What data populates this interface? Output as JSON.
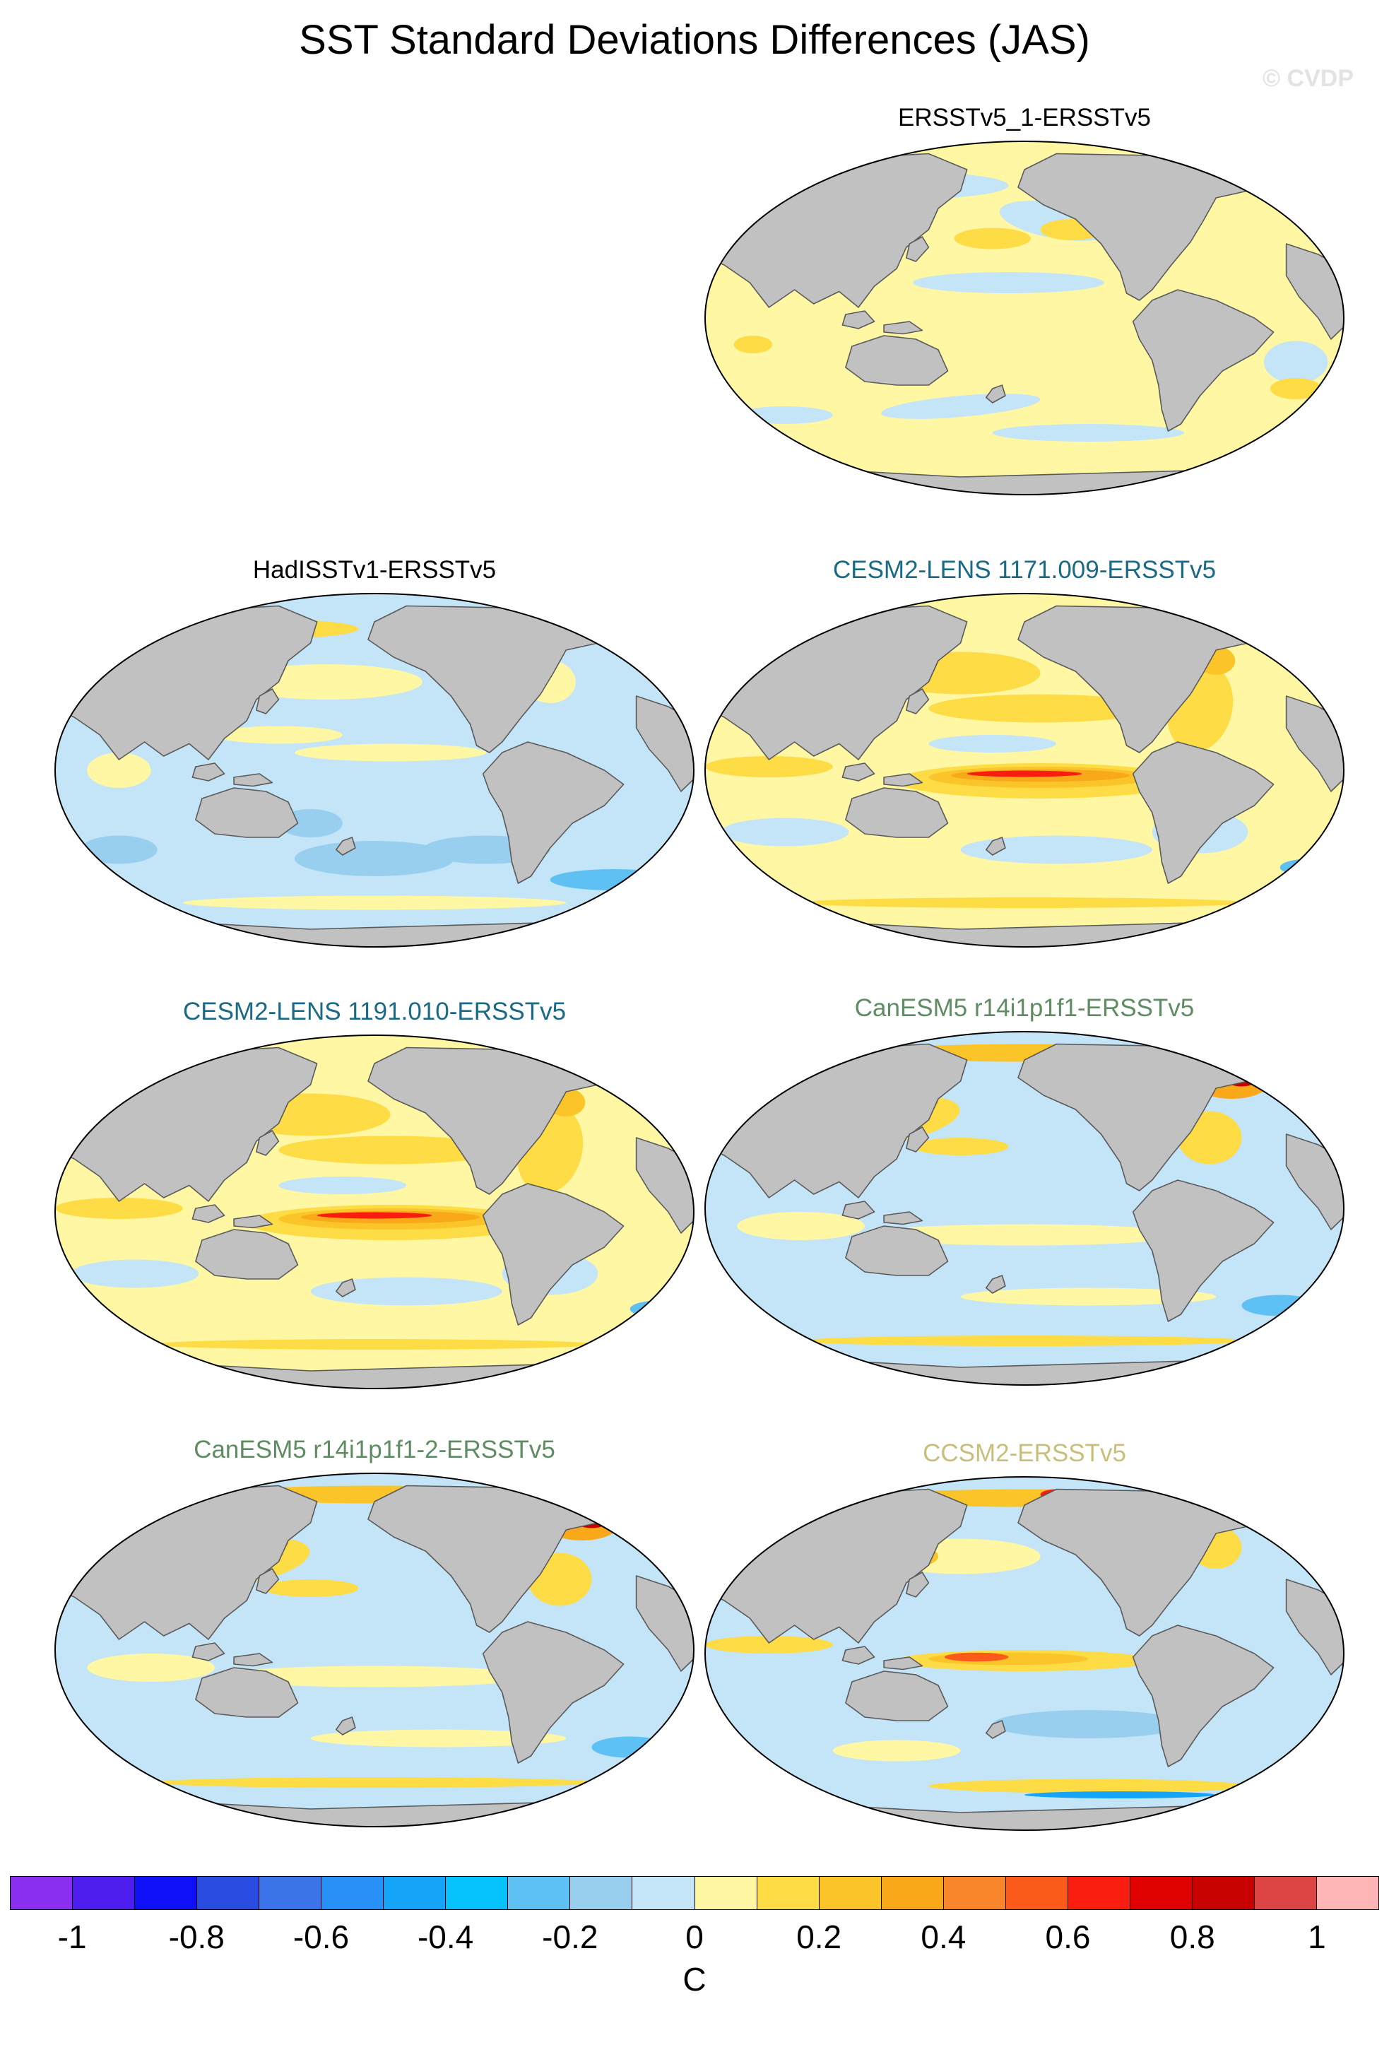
{
  "title": "SST Standard Deviations Differences (JAS)",
  "watermark": "© CVDP",
  "panels": [
    {
      "label": "ERSSTv5_1-ERSSTv5",
      "label_color": "#000000",
      "pattern": "mild"
    },
    {
      "label": "HadISSTv1-ERSSTv5",
      "label_color": "#000000",
      "pattern": "cool"
    },
    {
      "label": "CESM2-LENS 1171.009-ERSSTv5",
      "label_color": "#1a6a86",
      "pattern": "enso-strong"
    },
    {
      "label": "CESM2-LENS 1191.010-ERSSTv5",
      "label_color": "#1a6a86",
      "pattern": "enso-strong"
    },
    {
      "label": "CanESM5 r14i1p1f1-ERSSTv5",
      "label_color": "#5f8c63",
      "pattern": "arctic-warm"
    },
    {
      "label": "CanESM5 r14i1p1f1-2-ERSSTv5",
      "label_color": "#5f8c63",
      "pattern": "arctic-warm"
    },
    {
      "label": "CCSM2-ERSSTv5",
      "label_color": "#c8c07a",
      "pattern": "enso-moderate"
    }
  ],
  "colorbar": {
    "units": "C",
    "tick_labels": [
      "-1",
      "-0.8",
      "-0.6",
      "-0.4",
      "-0.2",
      "0",
      "0.2",
      "0.4",
      "0.6",
      "0.8",
      "1"
    ],
    "levels": [
      -1,
      -0.9,
      -0.8,
      -0.7,
      -0.6,
      -0.5,
      -0.4,
      -0.3,
      -0.2,
      -0.1,
      0,
      0.1,
      0.2,
      0.3,
      0.4,
      0.5,
      0.6,
      0.7,
      0.8,
      0.9,
      1
    ],
    "colors": [
      "#8b2ff0",
      "#4e1df0",
      "#1010f8",
      "#2a4be0",
      "#3a74e8",
      "#2891f7",
      "#14a4f8",
      "#06c3fd",
      "#5ec0f3",
      "#98cfef",
      "#c4e4f7",
      "#fff7a4",
      "#fddc46",
      "#fbc52a",
      "#f9a81a",
      "#f9862a",
      "#fb5a1a",
      "#f81d0e",
      "#e00000",
      "#c70000",
      "#dd4444",
      "#ffb5b5"
    ]
  },
  "colors": {
    "land": "#c1c1c1",
    "coast": "#5a5a5a"
  }
}
